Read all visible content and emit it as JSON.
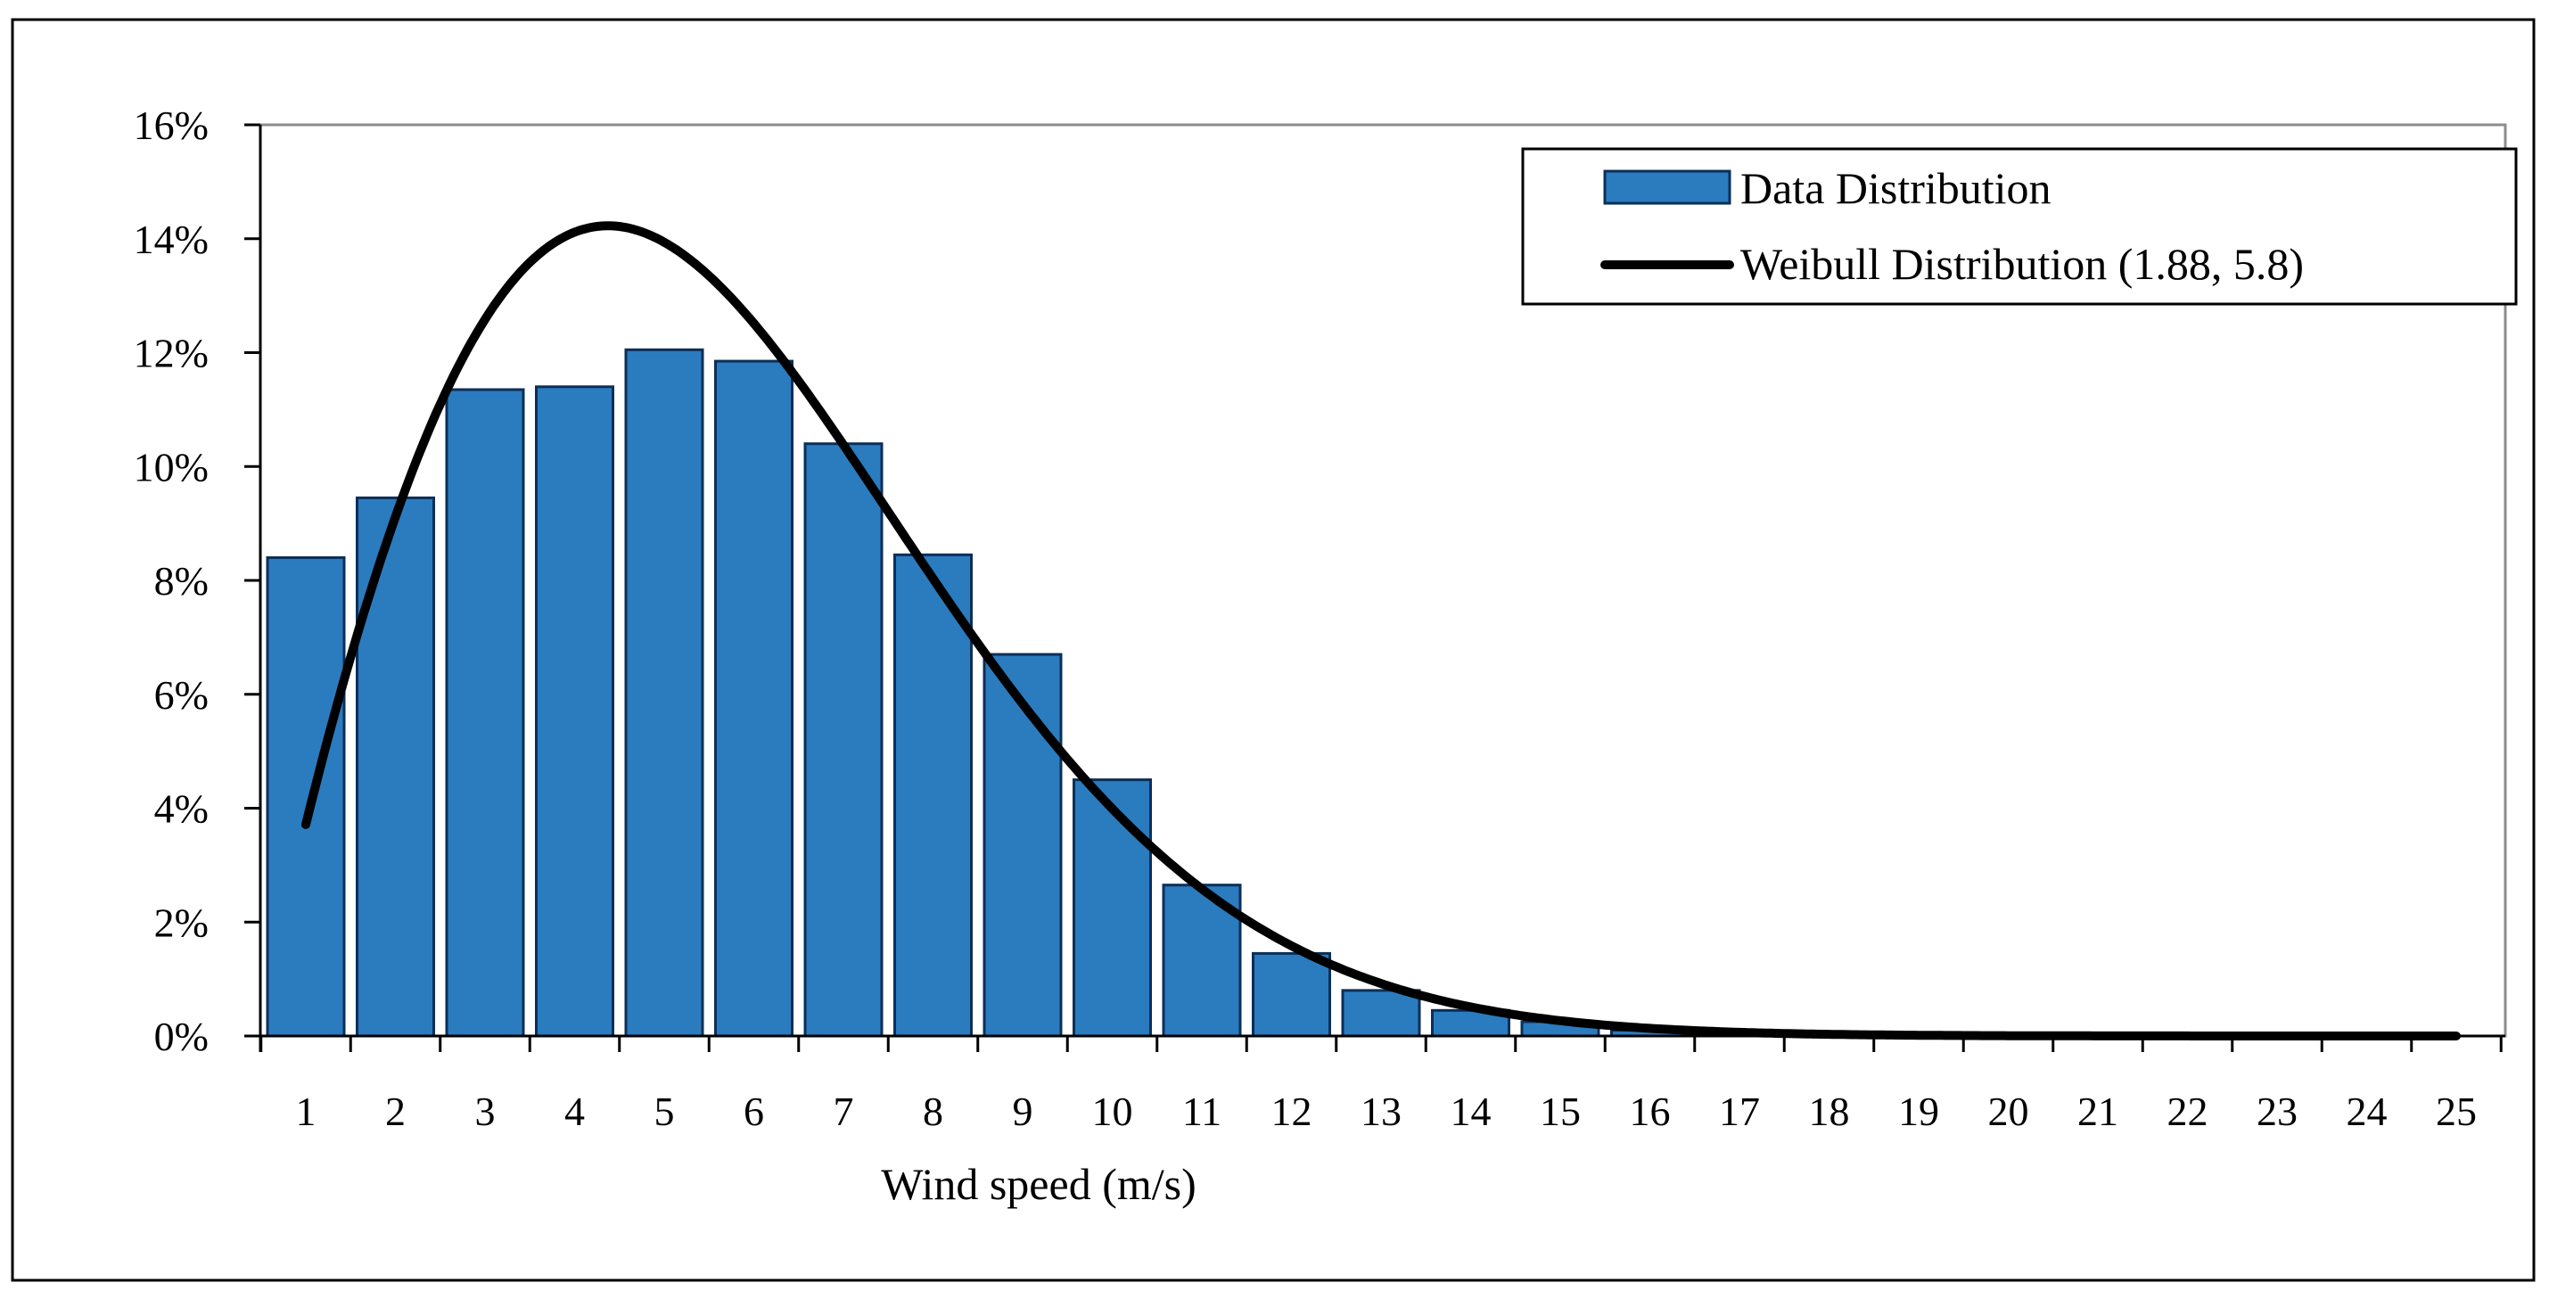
{
  "chart_data": {
    "type": "bar",
    "title": "",
    "xlabel": "Wind speed (m/s)",
    "ylabel": "",
    "categories": [
      "1",
      "2",
      "3",
      "4",
      "5",
      "6",
      "7",
      "8",
      "9",
      "10",
      "11",
      "12",
      "13",
      "14",
      "15",
      "16",
      "17",
      "18",
      "19",
      "20",
      "21",
      "22",
      "23",
      "24",
      "25"
    ],
    "yticks": [
      "0%",
      "2%",
      "4%",
      "6%",
      "8%",
      "10%",
      "12%",
      "14%",
      "16%"
    ],
    "ylim": [
      0,
      16
    ],
    "grid": false,
    "legend_position": "top-right",
    "series": [
      {
        "name": "Data Distribution",
        "kind": "bar",
        "color": "#2b7bbf",
        "edge_color": "#0b2f57",
        "values": [
          8.4,
          9.45,
          11.35,
          11.4,
          12.05,
          11.85,
          10.4,
          8.45,
          6.7,
          4.5,
          2.65,
          1.45,
          0.8,
          0.45,
          0.25,
          0.1,
          0.05,
          0.02,
          0.01,
          0.01,
          0.0,
          0.0,
          0.0,
          0.0,
          0.0
        ]
      },
      {
        "name": "Weibull Distribution (1.88, 5.8)",
        "kind": "line",
        "color": "#000000",
        "weibull_shape": 1.88,
        "weibull_scale": 5.8,
        "x_start": 0.5,
        "x_end": 24.5
      }
    ]
  }
}
